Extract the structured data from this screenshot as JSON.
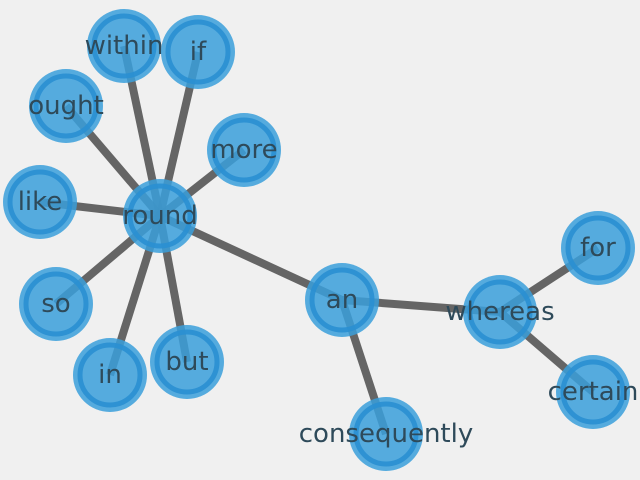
{
  "nodes": [
    {
      "id": "within",
      "label": "within"
    },
    {
      "id": "if",
      "label": "if"
    },
    {
      "id": "ought",
      "label": "ought"
    },
    {
      "id": "more",
      "label": "more"
    },
    {
      "id": "like",
      "label": "like"
    },
    {
      "id": "round",
      "label": "round"
    },
    {
      "id": "so",
      "label": "so"
    },
    {
      "id": "in",
      "label": "in"
    },
    {
      "id": "but",
      "label": "but"
    },
    {
      "id": "an",
      "label": "an"
    },
    {
      "id": "whereas",
      "label": "whereas"
    },
    {
      "id": "for",
      "label": "for"
    },
    {
      "id": "certain",
      "label": "certain"
    },
    {
      "id": "consequently",
      "label": "consequently"
    }
  ],
  "edges": [
    [
      "round",
      "within"
    ],
    [
      "round",
      "if"
    ],
    [
      "round",
      "ought"
    ],
    [
      "round",
      "more"
    ],
    [
      "round",
      "like"
    ],
    [
      "round",
      "so"
    ],
    [
      "round",
      "in"
    ],
    [
      "round",
      "but"
    ],
    [
      "round",
      "an"
    ],
    [
      "an",
      "whereas"
    ],
    [
      "an",
      "consequently"
    ],
    [
      "whereas",
      "for"
    ],
    [
      "whereas",
      "certain"
    ]
  ],
  "colors": {
    "background": "#f0f0f0",
    "node": "#3a9fda",
    "edge": "#555555",
    "label": "#2e4a5a"
  }
}
